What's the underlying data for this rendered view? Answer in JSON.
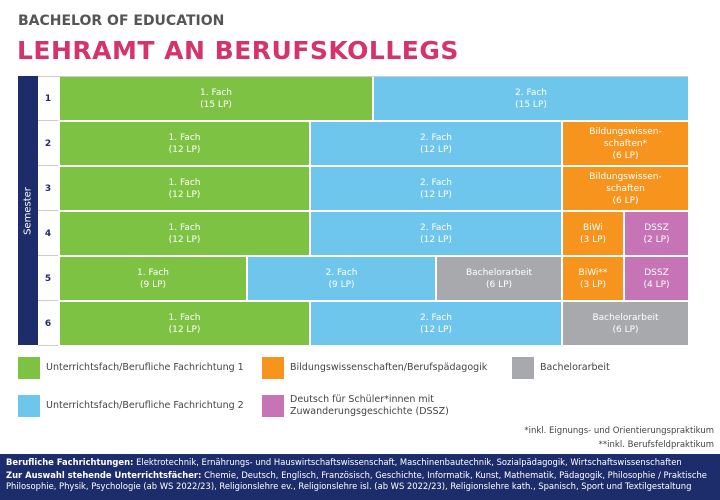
{
  "header": {
    "kicker": "BACHELOR OF EDUCATION",
    "title": "LEHRAMT AN BERUFSKOLLEGS"
  },
  "grid": {
    "axis_label": "Semester",
    "rows": [
      {
        "label": "1",
        "cells": [
          {
            "lines": [
              "1. Fach",
              "(15 LP)"
            ],
            "color": "#7dc242"
          },
          {
            "lines": [
              "2. Fach",
              "(15 LP)"
            ],
            "color": "#6ec6ec"
          }
        ]
      },
      {
        "label": "2",
        "cells": [
          {
            "lines": [
              "1. Fach",
              "(12 LP)"
            ],
            "color": "#7dc242"
          },
          {
            "lines": [
              "2. Fach",
              "(12 LP)"
            ],
            "color": "#6ec6ec"
          },
          {
            "lines": [
              "Bildungswissen-",
              "schaften*",
              "(6 LP)"
            ],
            "color": "#f7941d"
          }
        ]
      },
      {
        "label": "3",
        "cells": [
          {
            "lines": [
              "1. Fach",
              "(12 LP)"
            ],
            "color": "#7dc242"
          },
          {
            "lines": [
              "2. Fach",
              "(12 LP)"
            ],
            "color": "#6ec6ec"
          },
          {
            "lines": [
              "Bildungswissen-",
              "schaften",
              "(6 LP)"
            ],
            "color": "#f7941d"
          }
        ]
      },
      {
        "label": "4",
        "cells": [
          {
            "lines": [
              "1. Fach",
              "(12 LP)"
            ],
            "color": "#7dc242"
          },
          {
            "lines": [
              "2. Fach",
              "(12 LP)"
            ],
            "color": "#6ec6ec"
          },
          {
            "lines": [
              "BiWi",
              "(3 LP)"
            ],
            "color": "#f7941d"
          },
          {
            "lines": [
              "DSSZ",
              "(2 LP)"
            ],
            "color": "#c674b5"
          }
        ]
      },
      {
        "label": "5",
        "cells": [
          {
            "lines": [
              "1. Fach",
              "(9 LP)"
            ],
            "color": "#7dc242"
          },
          {
            "lines": [
              "2. Fach",
              "(9 LP)"
            ],
            "color": "#6ec6ec"
          },
          {
            "lines": [
              "Bachelorarbeit",
              "(6 LP)"
            ],
            "color": "#a7a9ac"
          },
          {
            "lines": [
              "BiWi**",
              "(3 LP)"
            ],
            "color": "#f7941d"
          },
          {
            "lines": [
              "DSSZ",
              "(4 LP)"
            ],
            "color": "#c674b5"
          }
        ]
      },
      {
        "label": "6",
        "cells": [
          {
            "lines": [
              "1. Fach",
              "(12 LP)"
            ],
            "color": "#7dc242"
          },
          {
            "lines": [
              "2. Fach",
              "(12 LP)"
            ],
            "color": "#6ec6ec"
          },
          {
            "lines": [
              "Bachelorarbeit",
              "(6 LP)"
            ],
            "color": "#a7a9ac"
          }
        ]
      }
    ]
  },
  "legend": [
    {
      "lines": [
        "Unterrichtsfach/Berufliche Fachrichtung 1"
      ],
      "color": "#7dc242"
    },
    {
      "lines": [
        "Bildungswissenschaften/Berufspädagogik"
      ],
      "color": "#f7941d"
    },
    {
      "lines": [
        "Bachelorarbeit"
      ],
      "color": "#a7a9ac"
    },
    {
      "lines": [
        "Unterrichtsfach/Berufliche Fachrichtung 2"
      ],
      "color": "#6ec6ec"
    },
    {
      "lines": [
        "Deutsch für Schüler*innen mit",
        "Zuwanderungsgeschichte (DSSZ)"
      ],
      "color": "#c674b5"
    }
  ],
  "footnotes": [
    "*inkl. Eignungs- und Orientierungspraktikum",
    "**inkl. Berufsfeldpraktikum"
  ],
  "footer": [
    {
      "lead": "Berufliche Fachrichtungen:",
      "text": "Elektrotechnik, Ernährungs- und Hauswirtschaftswissenschaft, Maschinenbautechnik, Sozialpädagogik, Wirtschaftswissenschaften"
    },
    {
      "lead": "Zur Auswahl stehende Unterrichtsfächer:",
      "text": "Chemie, Deutsch, Englisch, Französisch, Geschichte, Informatik, Kunst, Mathematik, Pädagogik, Philosophie / Praktische Philosophie, Physik, Psychologie (ab WS 2022/23), Religionslehre ev., Religionslehre isl. (ab WS 2022/23), Religionslehre kath., Spanisch, Sport und Textilgestaltung"
    }
  ]
}
